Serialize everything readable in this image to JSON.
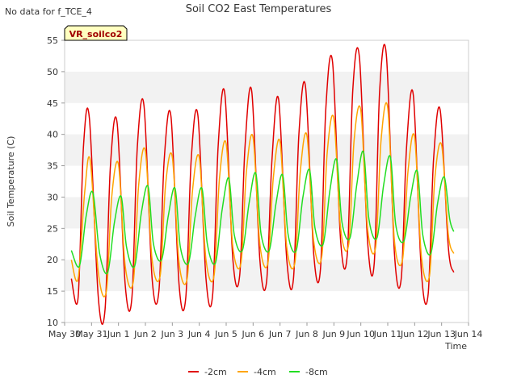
{
  "nodata_text": "No data for f_TCE_4",
  "chart_data": {
    "type": "line",
    "title": "Soil CO2 East Temperatures",
    "xlabel": "Time",
    "ylabel": "Soil Temperature (C)",
    "badge": "VR_soilco2",
    "xlim_days": [
      0,
      15
    ],
    "ylim": [
      10,
      55
    ],
    "yticks": [
      10,
      15,
      20,
      25,
      30,
      35,
      40,
      45,
      50,
      55
    ],
    "xtick_labels": [
      "May 30",
      "May 31",
      "Jun 1",
      "Jun 2",
      "Jun 3",
      "Jun 4",
      "Jun 5",
      "Jun 6",
      "Jun 7",
      "Jun 8",
      "Jun 9",
      "Jun 10",
      "Jun 11",
      "Jun 12",
      "Jun 13",
      "Jun 14"
    ],
    "legend_position": "bottom-center",
    "grid": true,
    "series": [
      {
        "name": "-2cm",
        "color": "#e00000",
        "x_days": [
          0.25,
          0.5,
          0.7,
          0.92,
          1.25,
          1.5,
          1.7,
          1.95,
          2.25,
          2.5,
          2.7,
          2.95,
          3.25,
          3.5,
          3.7,
          3.95,
          4.25,
          4.5,
          4.7,
          4.95,
          5.25,
          5.5,
          5.7,
          5.95,
          6.25,
          6.5,
          6.7,
          6.95,
          7.25,
          7.5,
          7.7,
          7.95,
          8.25,
          8.5,
          8.7,
          8.95,
          9.25,
          9.5,
          9.7,
          9.95,
          10.25,
          10.5,
          10.7,
          10.95,
          11.25,
          11.5,
          11.7,
          11.95,
          12.25,
          12.5,
          12.7,
          12.95,
          13.25,
          13.5,
          13.7,
          13.95,
          14.25,
          14.45
        ],
        "values": [
          17.0,
          14.0,
          38.0,
          42.5,
          14.0,
          12.0,
          35.0,
          41.8,
          16.0,
          14.0,
          38.0,
          44.5,
          17.0,
          15.0,
          36.0,
          42.8,
          16.0,
          14.0,
          36.0,
          43.0,
          17.0,
          14.5,
          38.0,
          46.5,
          20.0,
          17.5,
          38.0,
          46.8,
          20.0,
          16.5,
          36.0,
          45.5,
          20.0,
          17.0,
          40.0,
          47.5,
          21.0,
          18.5,
          44.0,
          51.5,
          23.0,
          21.0,
          47.0,
          52.2,
          23.0,
          19.5,
          47.0,
          52.6,
          21.0,
          17.0,
          38.0,
          46.2,
          18.0,
          14.5,
          36.0,
          43.8,
          22.0,
          18.0
        ]
      },
      {
        "name": "-4cm",
        "color": "#ffa500",
        "x_days": [
          0.25,
          0.5,
          0.75,
          0.95,
          1.25,
          1.55,
          1.75,
          2.0,
          2.25,
          2.55,
          2.75,
          3.0,
          3.25,
          3.55,
          3.75,
          4.0,
          4.25,
          4.55,
          4.75,
          5.0,
          5.25,
          5.55,
          5.75,
          6.0,
          6.25,
          6.55,
          6.75,
          7.0,
          7.25,
          7.55,
          7.75,
          8.0,
          8.25,
          8.55,
          8.75,
          9.0,
          9.25,
          9.55,
          9.75,
          10.0,
          10.25,
          10.55,
          10.75,
          11.0,
          11.25,
          11.55,
          11.75,
          12.0,
          12.25,
          12.55,
          12.75,
          13.0,
          13.25,
          13.55,
          13.75,
          14.0,
          14.25,
          14.45
        ],
        "values": [
          20.0,
          17.0,
          31.0,
          35.8,
          18.0,
          15.0,
          30.0,
          35.2,
          19.0,
          16.5,
          32.0,
          37.3,
          20.0,
          17.5,
          32.0,
          36.4,
          19.5,
          17.0,
          31.0,
          36.3,
          20.0,
          17.5,
          33.0,
          38.5,
          22.0,
          19.5,
          34.0,
          39.5,
          22.5,
          19.5,
          33.0,
          38.8,
          22.0,
          19.5,
          34.0,
          39.8,
          23.0,
          20.5,
          37.0,
          42.5,
          25.0,
          22.5,
          39.0,
          43.8,
          25.0,
          22.0,
          39.0,
          44.2,
          23.0,
          20.0,
          34.0,
          39.5,
          20.5,
          17.5,
          33.0,
          38.3,
          24.0,
          21.0
        ]
      },
      {
        "name": "-8cm",
        "color": "#22dd22",
        "x_days": [
          0.25,
          0.55,
          0.8,
          1.05,
          1.3,
          1.6,
          1.85,
          2.1,
          2.3,
          2.6,
          2.85,
          3.1,
          3.3,
          3.6,
          3.85,
          4.1,
          4.3,
          4.6,
          4.85,
          5.1,
          5.3,
          5.6,
          5.85,
          6.1,
          6.3,
          6.6,
          6.85,
          7.1,
          7.3,
          7.6,
          7.85,
          8.1,
          8.3,
          8.6,
          8.85,
          9.1,
          9.3,
          9.6,
          9.85,
          10.1,
          10.3,
          10.6,
          10.85,
          11.1,
          11.3,
          11.6,
          11.85,
          12.1,
          12.3,
          12.6,
          12.85,
          13.1,
          13.3,
          13.6,
          13.85,
          14.1,
          14.3,
          14.45
        ],
        "values": [
          21.5,
          19.0,
          27.0,
          30.7,
          21.0,
          18.0,
          26.0,
          30.1,
          22.0,
          19.0,
          27.5,
          31.7,
          22.5,
          20.0,
          27.0,
          31.4,
          22.0,
          19.5,
          27.0,
          31.4,
          22.5,
          19.5,
          28.0,
          33.0,
          24.0,
          21.5,
          29.0,
          33.8,
          24.0,
          21.5,
          29.0,
          33.5,
          24.0,
          21.5,
          30.0,
          34.3,
          25.0,
          22.5,
          31.0,
          36.0,
          26.0,
          23.5,
          32.0,
          37.2,
          26.5,
          23.5,
          32.0,
          36.4,
          25.5,
          23.0,
          30.0,
          34.1,
          24.0,
          21.0,
          29.0,
          33.2,
          26.5,
          24.5
        ]
      }
    ]
  }
}
